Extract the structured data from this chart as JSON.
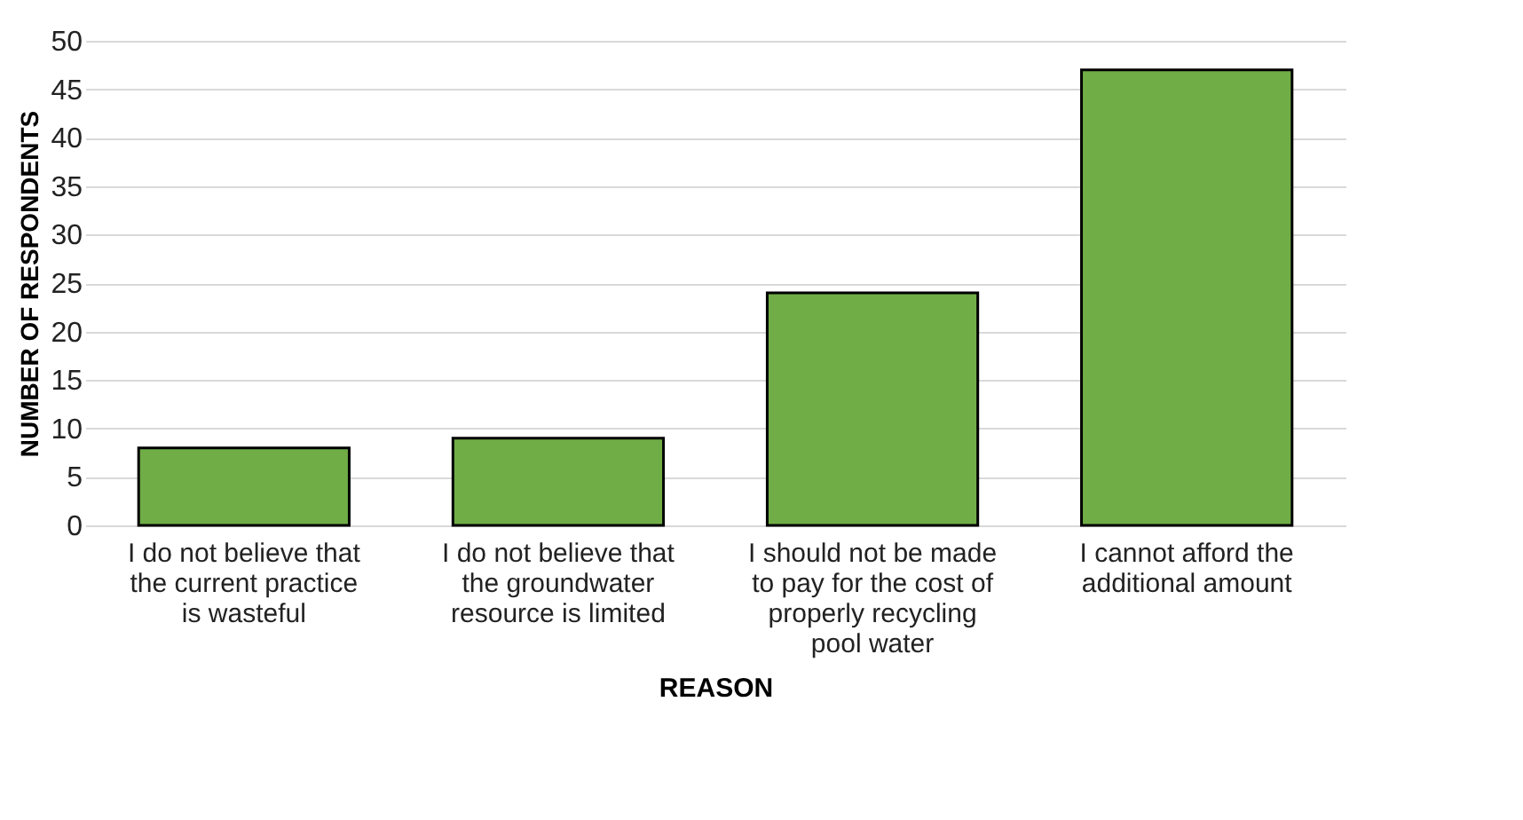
{
  "chart_data": {
    "type": "bar",
    "xlabel": "REASON",
    "ylabel": "NUMBER OF RESPONDENTS",
    "categories": [
      "I do not believe that the current practice is wasteful",
      "I do not believe that the groundwater resource is limited",
      "I should not be made to pay for the cost of properly recycling pool water",
      "I cannot afford the additional amount"
    ],
    "values": [
      8,
      9,
      24,
      47
    ],
    "color": "#70ad47",
    "ylim": [
      0,
      50
    ],
    "yticks": [
      0,
      5,
      10,
      15,
      20,
      25,
      30,
      35,
      40,
      45,
      50
    ],
    "grid": "y"
  }
}
